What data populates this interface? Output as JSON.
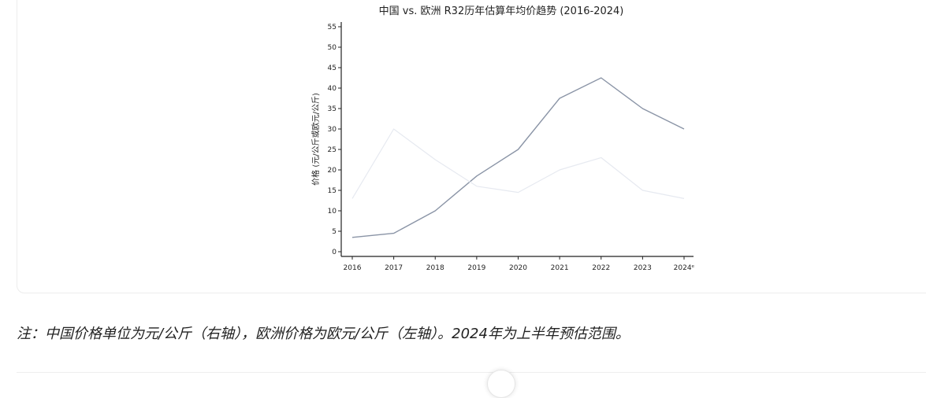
{
  "chart_data": {
    "type": "line",
    "title": "中国 vs. 欧洲 R32历年估算年均价趋势 (2016-2024)",
    "xlabel": "",
    "ylabel": "价格 (元/公斤或欧元/公斤)",
    "categories": [
      "2016",
      "2017",
      "2018",
      "2019",
      "2020",
      "2021",
      "2022",
      "2023",
      "2024ᵉ"
    ],
    "ylim": [
      0,
      55
    ],
    "yticks": [
      0,
      5,
      10,
      15,
      20,
      25,
      30,
      35,
      40,
      45,
      50,
      55
    ],
    "grid": false,
    "series": [
      {
        "values": [
          3.5,
          4.5,
          10,
          18.5,
          25,
          37.5,
          42.5,
          35,
          30
        ],
        "color": "#8a94a6"
      },
      {
        "values": [
          13,
          30,
          22.5,
          16,
          14.5,
          20,
          23,
          15,
          13
        ],
        "color": "#e6e9f0"
      }
    ]
  },
  "note": "注：中国价格单位为元/公斤（右轴），欧洲价格为欧元/公斤（左轴）。2024年为上半年预估范围。"
}
